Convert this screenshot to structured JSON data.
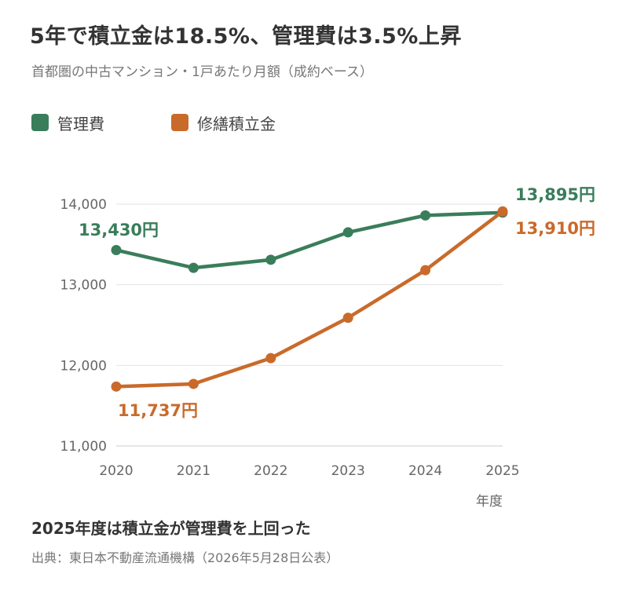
{
  "title": "5年で積立金は18.5%、管理費は3.5%上昇",
  "subtitle": "首都圏の中古マンション・1戸あたり月額（成約ベース）",
  "footnote_heading": "2025年度は積立金が管理費を上回った",
  "source": "出典：東日本不動産流通機構（2026年5月28日公表）",
  "chart_data": {
    "type": "line",
    "x": [
      "2020",
      "2021",
      "2022",
      "2023",
      "2024",
      "2025"
    ],
    "xlabel": "年度",
    "ylabel": "",
    "ylim": [
      11000,
      14000
    ],
    "yticks": [
      "11,000",
      "12,000",
      "13,000",
      "14,000"
    ],
    "grid": true,
    "legend_position": "top-left",
    "series": [
      {
        "name": "管理費",
        "color": "#3a7d5b",
        "values": [
          13430,
          13210,
          13310,
          13650,
          13860,
          13895
        ]
      },
      {
        "name": "修繕積立金",
        "color": "#c96a2b",
        "values": [
          11737,
          11770,
          12090,
          12590,
          13180,
          13910
        ]
      }
    ],
    "annotations": [
      {
        "series": 0,
        "index": 0,
        "text": "13,430円",
        "color": "#3a7d5b"
      },
      {
        "series": 0,
        "index": 5,
        "text": "13,895円",
        "color": "#3a7d5b"
      },
      {
        "series": 1,
        "index": 0,
        "text": "11,737円",
        "color": "#c96a2b"
      },
      {
        "series": 1,
        "index": 5,
        "text": "13,910円",
        "color": "#c96a2b"
      }
    ]
  }
}
